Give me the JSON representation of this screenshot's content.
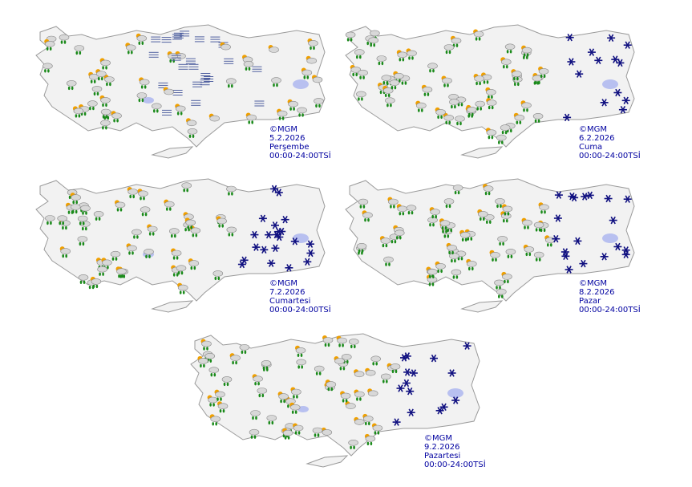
{
  "colors": {
    "land": "#f2f2f2",
    "border": "#9a9a9a",
    "lake": "#b8c0f0",
    "caption": "#0000a0",
    "rain_drop": "#1a8a1a",
    "snow": "#101080",
    "sun": "#f0a000"
  },
  "maps": [
    {
      "copyright": "©MGM",
      "date": "5.2.2026",
      "day": "Perşembe",
      "period": "00:00-24:00TSİ",
      "icons": [
        "rain",
        "rain-shower",
        "fog",
        "sunny-intervals",
        "cloudy"
      ]
    },
    {
      "copyright": "©MGM",
      "date": "6.2.2026",
      "day": "Cuma",
      "period": "00:00-24:00TSİ",
      "icons": [
        "rain",
        "rain-shower",
        "snow",
        "cloudy"
      ]
    },
    {
      "copyright": "©MGM",
      "date": "7.2.2026",
      "day": "Cumartesi",
      "period": "00:00-24:00TSİ",
      "icons": [
        "rain",
        "rain-shower",
        "snow",
        "cloudy"
      ]
    },
    {
      "copyright": "©MGM",
      "date": "8.2.2026",
      "day": "Pazar",
      "period": "00:00-24:00TSİ",
      "icons": [
        "rain",
        "rain-shower",
        "snow",
        "cloudy"
      ]
    },
    {
      "copyright": "©MGM",
      "date": "9.2.2026",
      "day": "Pazartesi",
      "period": "00:00-24:00TSİ",
      "icons": [
        "rain",
        "rain-shower",
        "snow",
        "sunny-intervals",
        "cloudy"
      ]
    }
  ]
}
